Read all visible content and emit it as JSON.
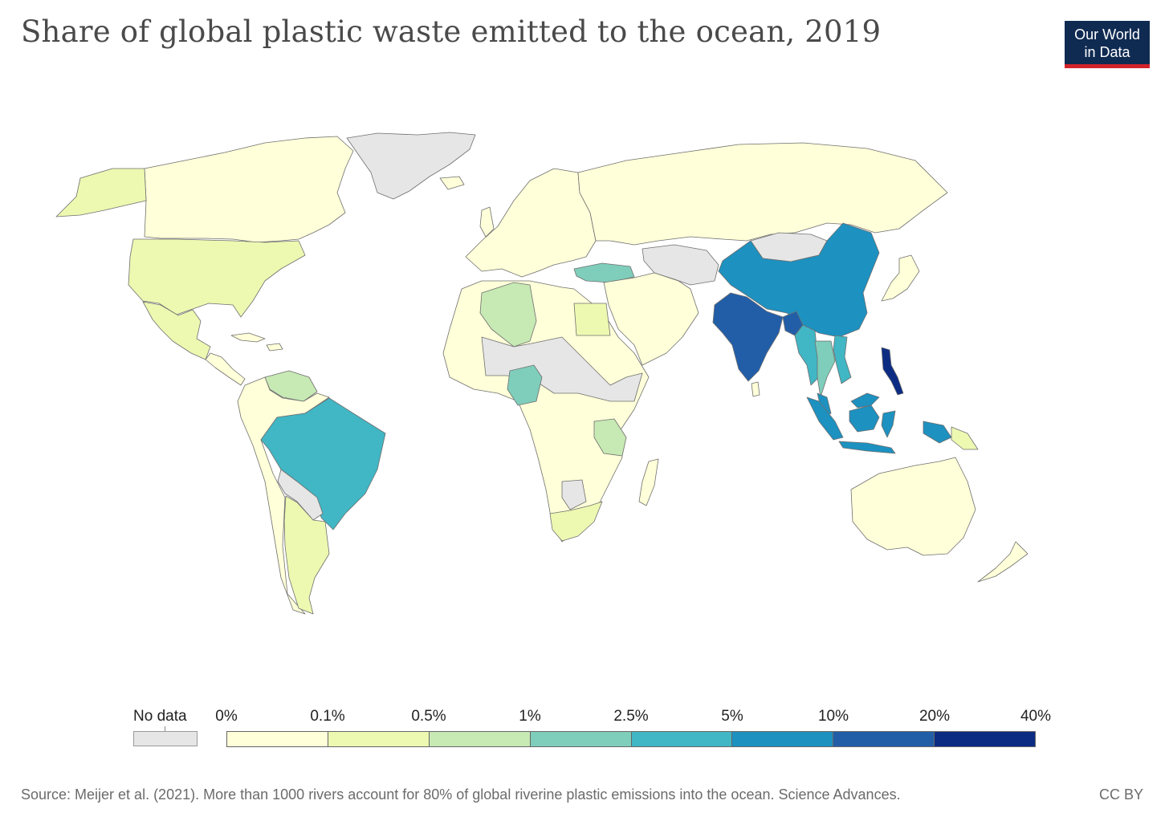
{
  "title": "Share of global plastic waste emitted to the ocean, 2019",
  "logo": {
    "line1": "Our World",
    "line2": "in Data"
  },
  "legend": {
    "no_data_label": "No data",
    "no_data_color": "#e6e6e6",
    "ticks": [
      "0%",
      "0.1%",
      "0.5%",
      "1%",
      "2.5%",
      "5%",
      "10%",
      "20%",
      "40%"
    ],
    "colors": [
      "#ffffd9",
      "#edf8b1",
      "#c7e9b4",
      "#7fcdbb",
      "#41b6c4",
      "#1d91c0",
      "#225ea8",
      "#0c2c84"
    ]
  },
  "map_data": {
    "type": "choropleth",
    "variable": "Share of global plastic waste emitted to the ocean",
    "unit": "%",
    "year": 2019,
    "bins": [
      "0–0.1%",
      "0.1–0.5%",
      "0.5–1%",
      "1–2.5%",
      "2.5–5%",
      "5–10%",
      "10–20%",
      "20–40%"
    ],
    "regions": [
      {
        "name": "Philippines",
        "bin": 7
      },
      {
        "name": "India",
        "bin": 6
      },
      {
        "name": "Bangladesh",
        "bin": 6
      },
      {
        "name": "China",
        "bin": 5
      },
      {
        "name": "Indonesia",
        "bin": 5
      },
      {
        "name": "Malaysia",
        "bin": 5
      },
      {
        "name": "Brazil",
        "bin": 4
      },
      {
        "name": "Myanmar",
        "bin": 4
      },
      {
        "name": "Vietnam",
        "bin": 4
      },
      {
        "name": "Thailand",
        "bin": 3
      },
      {
        "name": "Turkey",
        "bin": 3
      },
      {
        "name": "Nigeria",
        "bin": 3
      },
      {
        "name": "Algeria",
        "bin": 2
      },
      {
        "name": "Tanzania",
        "bin": 2
      },
      {
        "name": "Venezuela",
        "bin": 2
      },
      {
        "name": "United States",
        "bin": 1
      },
      {
        "name": "Mexico",
        "bin": 1
      },
      {
        "name": "Alaska",
        "bin": 1
      },
      {
        "name": "Argentina",
        "bin": 1
      },
      {
        "name": "Egypt",
        "bin": 1
      },
      {
        "name": "South Africa",
        "bin": 1
      },
      {
        "name": "Papua New Guinea",
        "bin": 1
      },
      {
        "name": "Canada",
        "bin": 0
      },
      {
        "name": "Russia",
        "bin": 0
      },
      {
        "name": "Australia",
        "bin": 0
      },
      {
        "name": "Europe",
        "bin": 0
      },
      {
        "name": "Middle East",
        "bin": 0
      },
      {
        "name": "Africa (other)",
        "bin": 0
      },
      {
        "name": "South America (other)",
        "bin": 0
      },
      {
        "name": "Japan",
        "bin": 0
      },
      {
        "name": "New Zealand",
        "bin": 0
      },
      {
        "name": "Greenland",
        "bin": null
      },
      {
        "name": "Mongolia",
        "bin": null
      },
      {
        "name": "Central Asia",
        "bin": null
      },
      {
        "name": "Sahel",
        "bin": null
      },
      {
        "name": "Bolivia / Paraguay",
        "bin": null
      }
    ]
  },
  "footer": {
    "source": "Source: Meijer et al. (2021). More than 1000 rivers account for 80% of global riverine plastic emissions into the ocean. Science Advances.",
    "license": "CC BY"
  }
}
